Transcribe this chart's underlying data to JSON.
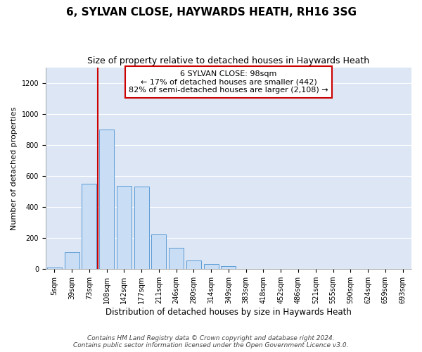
{
  "title1": "6, SYLVAN CLOSE, HAYWARDS HEATH, RH16 3SG",
  "title2": "Size of property relative to detached houses in Haywards Heath",
  "xlabel": "Distribution of detached houses by size in Haywards Heath",
  "ylabel": "Number of detached properties",
  "categories": [
    "5sqm",
    "39sqm",
    "73sqm",
    "108sqm",
    "142sqm",
    "177sqm",
    "211sqm",
    "246sqm",
    "280sqm",
    "314sqm",
    "349sqm",
    "383sqm",
    "418sqm",
    "452sqm",
    "486sqm",
    "521sqm",
    "555sqm",
    "590sqm",
    "624sqm",
    "659sqm",
    "693sqm"
  ],
  "values": [
    8,
    110,
    550,
    900,
    535,
    530,
    225,
    135,
    55,
    35,
    20,
    0,
    0,
    0,
    0,
    0,
    0,
    0,
    0,
    0,
    0
  ],
  "bar_color": "#c9ddf5",
  "bar_edge_color": "#5b9bd5",
  "vline_x": 2.5,
  "vline_color": "#cc0000",
  "annotation_text": "6 SYLVAN CLOSE: 98sqm\n← 17% of detached houses are smaller (442)\n82% of semi-detached houses are larger (2,108) →",
  "annotation_box_facecolor": "#ffffff",
  "annotation_box_edgecolor": "#cc0000",
  "ylim": [
    0,
    1300
  ],
  "yticks": [
    0,
    200,
    400,
    600,
    800,
    1000,
    1200
  ],
  "plot_bg_color": "#dce6f5",
  "fig_bg_color": "#ffffff",
  "grid_color": "#ffffff",
  "footnote": "Contains HM Land Registry data © Crown copyright and database right 2024.\nContains public sector information licensed under the Open Government Licence v3.0.",
  "title1_fontsize": 11,
  "title2_fontsize": 9,
  "xlabel_fontsize": 8.5,
  "ylabel_fontsize": 8,
  "tick_fontsize": 7,
  "annotation_fontsize": 8,
  "footnote_fontsize": 6.5
}
